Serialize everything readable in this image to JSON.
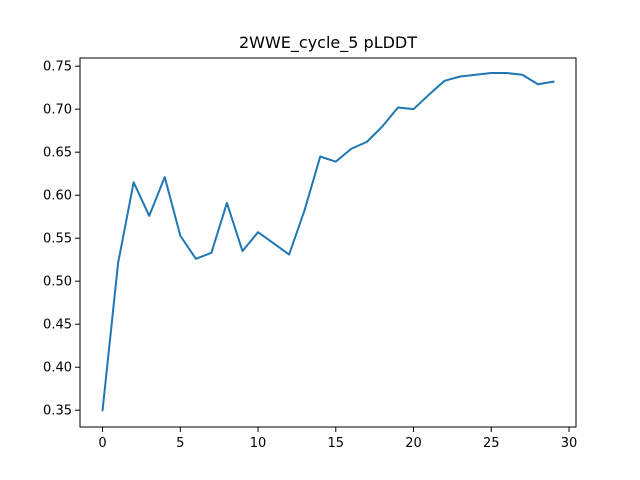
{
  "chart_data": {
    "type": "line",
    "title": "2WWE_cycle_5 pLDDT",
    "xlabel": "",
    "ylabel": "",
    "xlim": [
      -1.45,
      30.45
    ],
    "ylim": [
      0.3305,
      0.7595
    ],
    "grid": false,
    "x_ticks": [
      0,
      5,
      10,
      15,
      20,
      25,
      30
    ],
    "x_tick_labels": [
      "0",
      "5",
      "10",
      "15",
      "20",
      "25",
      "30"
    ],
    "y_ticks": [
      0.35,
      0.4,
      0.45,
      0.5,
      0.55,
      0.6,
      0.65,
      0.7,
      0.75
    ],
    "y_tick_labels": [
      "0.35",
      "0.40",
      "0.45",
      "0.50",
      "0.55",
      "0.60",
      "0.65",
      "0.70",
      "0.75"
    ],
    "series": [
      {
        "color": "#1f77b4",
        "x": [
          0,
          1,
          2,
          3,
          4,
          5,
          6,
          7,
          8,
          9,
          10,
          11,
          12,
          13,
          14,
          15,
          16,
          17,
          18,
          19,
          20,
          21,
          22,
          23,
          24,
          25,
          26,
          27,
          28,
          29
        ],
        "values": [
          0.35,
          0.521,
          0.615,
          0.576,
          0.621,
          0.553,
          0.526,
          0.533,
          0.591,
          0.535,
          0.557,
          0.544,
          0.531,
          0.583,
          0.645,
          0.639,
          0.654,
          0.662,
          0.68,
          0.702,
          0.7,
          0.717,
          0.733,
          0.738,
          0.74,
          0.742,
          0.742,
          0.74,
          0.729,
          0.732
        ]
      }
    ]
  }
}
